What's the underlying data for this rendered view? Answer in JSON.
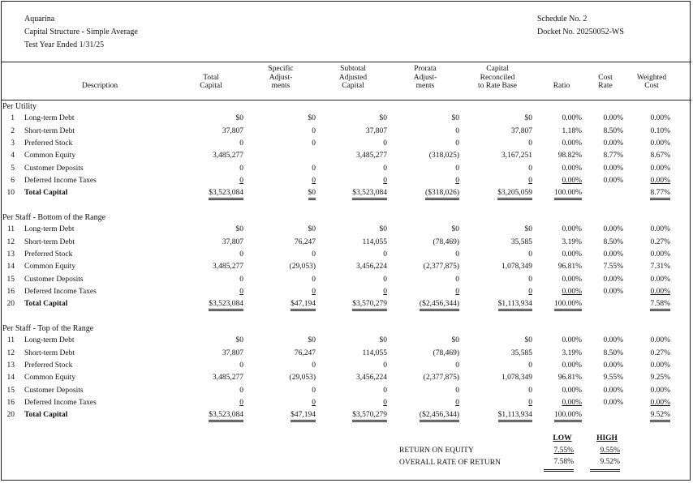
{
  "header": {
    "company": "Aquarina",
    "title": "Capital Structure - Simple Average",
    "period": "Test Year Ended 1/31/25",
    "schedule": "Schedule No. 2",
    "docket": "Docket No. 20250052-WS"
  },
  "columns": [
    [
      "",
      "",
      "Description"
    ],
    [
      "",
      "Total",
      "Capital"
    ],
    [
      "Specific",
      "Adjust-",
      "ments"
    ],
    [
      "Subtotal",
      "Adjusted",
      "Capital"
    ],
    [
      "Prorata",
      "Adjust-",
      "ments"
    ],
    [
      "Capital",
      "Reconciled",
      "to Rate Base"
    ],
    [
      "",
      "",
      "Ratio"
    ],
    [
      "",
      "Cost",
      "Rate"
    ],
    [
      "",
      "Weighted",
      "Cost"
    ]
  ],
  "sections": [
    {
      "title": "Per Utility",
      "rows": [
        {
          "no": "1",
          "desc": "Long-term Debt",
          "v": [
            "$0",
            "$0",
            "$0",
            "$0",
            "$0",
            "0.00%",
            "0.00%",
            "0.00%"
          ]
        },
        {
          "no": "2",
          "desc": "Short-term Debt",
          "v": [
            "37,807",
            "0",
            "37,807",
            "0",
            "37,807",
            "1.18%",
            "8.50%",
            "0.10%"
          ]
        },
        {
          "no": "3",
          "desc": "Preferred Stock",
          "v": [
            "0",
            "0",
            "0",
            "0",
            "0",
            "0.00%",
            "0.00%",
            "0.00%"
          ]
        },
        {
          "no": "4",
          "desc": "Common Equity",
          "v": [
            "3,485,277",
            "",
            "3,485,277",
            "(318,025)",
            "3,167,251",
            "98.82%",
            "8.77%",
            "8.67%"
          ]
        },
        {
          "no": "5",
          "desc": "Customer Deposits",
          "v": [
            "0",
            "0",
            "0",
            "0",
            "0",
            "0.00%",
            "0.00%",
            "0.00%"
          ]
        },
        {
          "no": "6",
          "desc": "Deferred Income Taxes",
          "v": [
            "0",
            "0",
            "0",
            "0",
            "0",
            "0.00%",
            "0.00%",
            "0.00%"
          ]
        },
        {
          "no": "10",
          "desc": "Total Capital",
          "v": [
            "$3,523,084",
            "$0",
            "$3,523,084",
            "($318,026)",
            "$3,205,059",
            "100.00%",
            "",
            "8.77%"
          ]
        }
      ]
    },
    {
      "title": "Per Staff - Bottom of the Range",
      "rows": [
        {
          "no": "11",
          "desc": "Long-term Debt",
          "v": [
            "$0",
            "$0",
            "$0",
            "$0",
            "$0",
            "0.00%",
            "0.00%",
            "0.00%"
          ]
        },
        {
          "no": "12",
          "desc": "Short-term Debt",
          "v": [
            "37,807",
            "76,247",
            "114,055",
            "(78,469)",
            "35,585",
            "3.19%",
            "8.50%",
            "0.27%"
          ]
        },
        {
          "no": "13",
          "desc": "Preferred Stock",
          "v": [
            "0",
            "0",
            "0",
            "0",
            "0",
            "0.00%",
            "0.00%",
            "0.00%"
          ]
        },
        {
          "no": "14",
          "desc": "Common Equity",
          "v": [
            "3,485,277",
            "(29,053)",
            "3,456,224",
            "(2,377,875)",
            "1,078,349",
            "96.81%",
            "7.55%",
            "7.31%"
          ]
        },
        {
          "no": "15",
          "desc": "Customer Deposits",
          "v": [
            "0",
            "0",
            "0",
            "0",
            "0",
            "0.00%",
            "0.00%",
            "0.00%"
          ]
        },
        {
          "no": "16",
          "desc": "Deferred Income Taxes",
          "v": [
            "0",
            "0",
            "0",
            "0",
            "0",
            "0.00%",
            "0.00%",
            "0.00%"
          ]
        },
        {
          "no": "20",
          "desc": "Total Capital",
          "v": [
            "$3,523,084",
            "$47,194",
            "$3,570,279",
            "($2,456,344)",
            "$1,113,934",
            "100.00%",
            "",
            "7.58%"
          ]
        }
      ]
    },
    {
      "title": "Per Staff - Top of the Range",
      "rows": [
        {
          "no": "11",
          "desc": "Long-term Debt",
          "v": [
            "$0",
            "$0",
            "$0",
            "$0",
            "$0",
            "0.00%",
            "0.00%",
            "0.00%"
          ]
        },
        {
          "no": "12",
          "desc": "Short-term Debt",
          "v": [
            "37,807",
            "76,247",
            "114,055",
            "(78,469)",
            "35,585",
            "3.19%",
            "8.50%",
            "0.27%"
          ]
        },
        {
          "no": "13",
          "desc": "Preferred Stock",
          "v": [
            "0",
            "0",
            "0",
            "0",
            "0",
            "0.00%",
            "0.00%",
            "0.00%"
          ]
        },
        {
          "no": "14",
          "desc": "Common Equity",
          "v": [
            "3,485,277",
            "(29,053)",
            "3,456,224",
            "(2,377,875)",
            "1,078,349",
            "96.81%",
            "9.55%",
            "9.25%"
          ]
        },
        {
          "no": "15",
          "desc": "Customer Deposits",
          "v": [
            "0",
            "0",
            "0",
            "0",
            "0",
            "0.00%",
            "0.00%",
            "0.00%"
          ]
        },
        {
          "no": "16",
          "desc": "Deferred Income Taxes",
          "v": [
            "0",
            "0",
            "0",
            "0",
            "0",
            "0.00%",
            "0.00%",
            "0.00%"
          ]
        },
        {
          "no": "20",
          "desc": "Total Capital",
          "v": [
            "$3,523,084",
            "$47,194",
            "$3,570,279",
            "($2,456,344)",
            "$1,113,934",
            "100.00%",
            "",
            "9.52%"
          ]
        }
      ]
    }
  ],
  "summary": {
    "low_label": "LOW",
    "high_label": "HIGH",
    "roe_label": "RETURN ON EQUITY",
    "roe_low": "7.55%",
    "roe_high": "9.55%",
    "ror_label": "OVERALL RATE OF RETURN",
    "ror_low": "7.58%",
    "ror_high": "9.52%"
  }
}
